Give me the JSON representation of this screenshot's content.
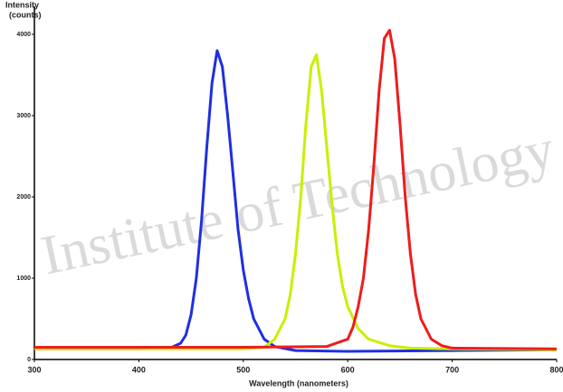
{
  "chart_data": {
    "type": "line",
    "ylabel": [
      "Intensity",
      "(counts)"
    ],
    "xlabel": "Wavelength (nanometers)",
    "watermark": "Institute of Technology",
    "xlim": [
      300,
      800
    ],
    "xticks": [
      300,
      400,
      500,
      600,
      700,
      800
    ],
    "ylim": [
      0,
      4300
    ],
    "yticks": [
      0,
      1000,
      2000,
      3000,
      4000
    ],
    "series": [
      {
        "color": "#1f2fe0",
        "x": [
          300,
          400,
          430,
          440,
          445,
          450,
          455,
          460,
          465,
          470,
          475,
          480,
          485,
          490,
          495,
          500,
          505,
          510,
          520,
          530,
          550,
          600,
          700,
          800
        ],
        "values": [
          130,
          130,
          140,
          200,
          300,
          550,
          1000,
          1700,
          2600,
          3400,
          3800,
          3600,
          3000,
          2300,
          1600,
          1100,
          750,
          500,
          250,
          160,
          110,
          100,
          110,
          120
        ]
      },
      {
        "color": "#c8f000",
        "x": [
          300,
          500,
          520,
          530,
          540,
          545,
          550,
          555,
          560,
          565,
          570,
          575,
          580,
          585,
          590,
          595,
          600,
          610,
          620,
          640,
          660,
          700,
          800
        ],
        "values": [
          130,
          130,
          150,
          250,
          500,
          800,
          1300,
          2000,
          2900,
          3600,
          3750,
          3300,
          2600,
          1900,
          1300,
          900,
          650,
          380,
          250,
          170,
          140,
          130,
          120
        ]
      },
      {
        "color": "#ee1c1c",
        "x": [
          300,
          500,
          580,
          600,
          605,
          610,
          615,
          620,
          625,
          630,
          635,
          640,
          645,
          650,
          655,
          660,
          665,
          670,
          680,
          690,
          700,
          800
        ],
        "values": [
          150,
          150,
          160,
          250,
          400,
          650,
          1000,
          1600,
          2400,
          3300,
          3950,
          4050,
          3700,
          2900,
          2000,
          1300,
          800,
          500,
          250,
          170,
          140,
          130
        ]
      }
    ]
  }
}
